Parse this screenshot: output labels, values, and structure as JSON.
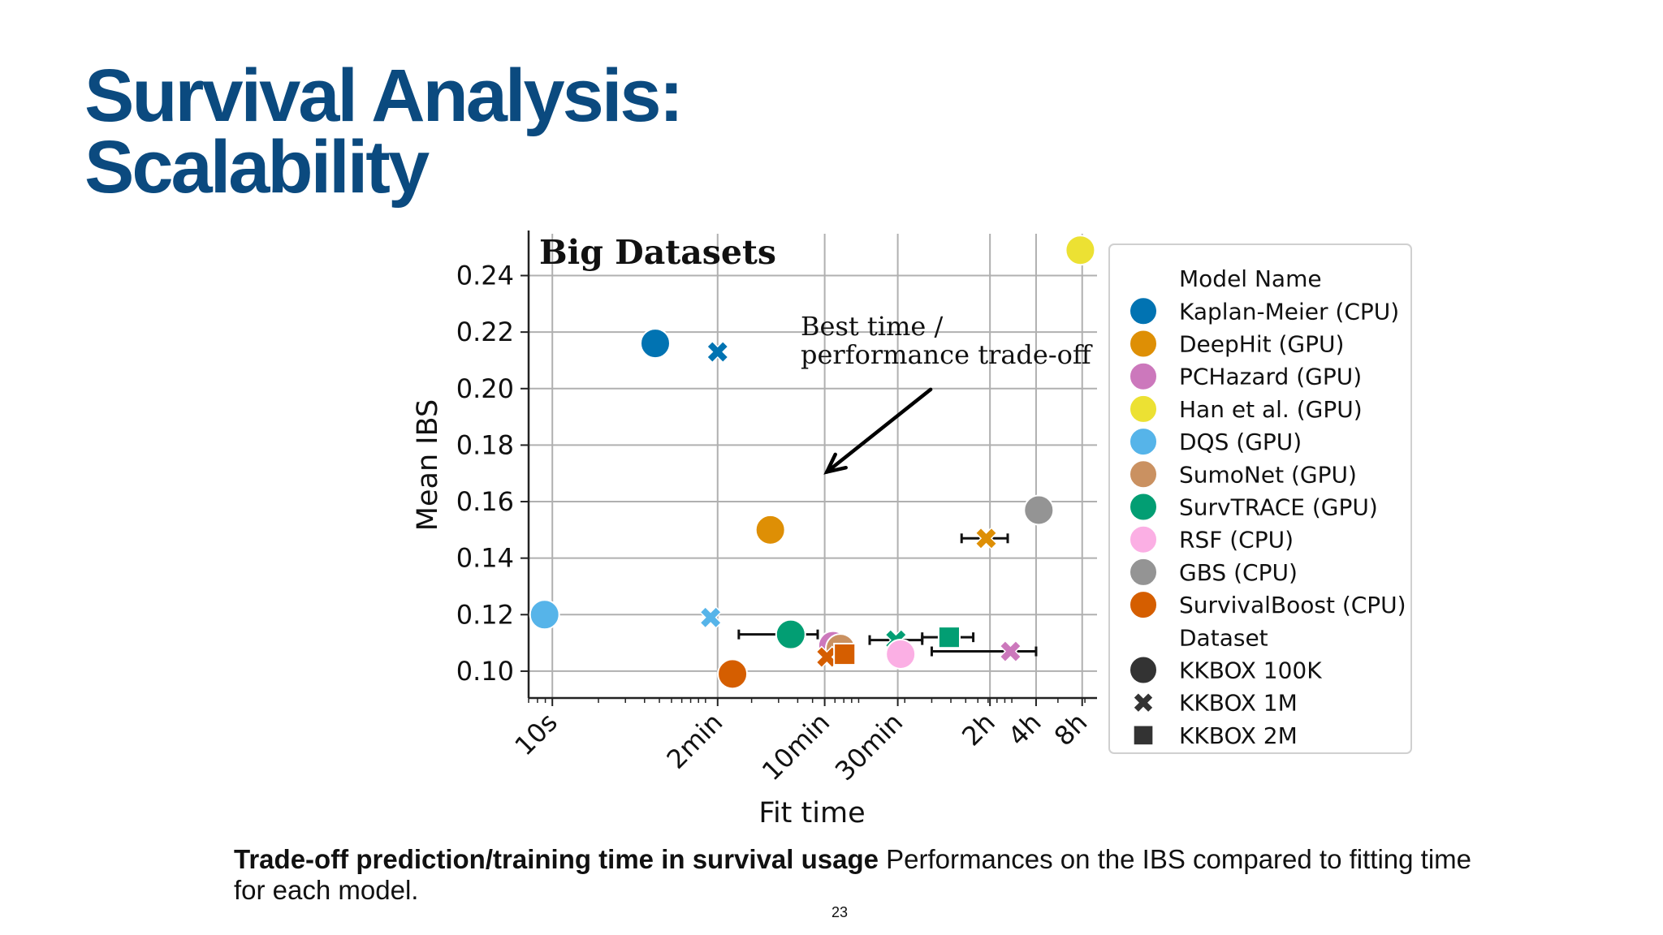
{
  "slide": {
    "title_line1": "Survival Analysis:",
    "title_line2": "Scalability",
    "caption_bold": "Trade-off prediction/training time in survival usage",
    "caption_rest": " Performances on the IBS compared to fitting time for each model.",
    "page_number": "23"
  },
  "chart_data": {
    "type": "scatter",
    "title": "Big Datasets",
    "xlabel": "Fit time",
    "ylabel": "Mean IBS",
    "x_scale": "log",
    "x_unit": "seconds",
    "xlim_seconds": [
      7,
      36000
    ],
    "ylim": [
      0.0905,
      0.2548
    ],
    "x_ticks": [
      {
        "value": 10,
        "label": "10s"
      },
      {
        "value": 120,
        "label": "2min"
      },
      {
        "value": 600,
        "label": "10min"
      },
      {
        "value": 1800,
        "label": "30min"
      },
      {
        "value": 7200,
        "label": "2h"
      },
      {
        "value": 14400,
        "label": "4h"
      },
      {
        "value": 28800,
        "label": "8h"
      }
    ],
    "y_ticks": [
      0.1,
      0.12,
      0.14,
      0.16,
      0.18,
      0.2,
      0.22,
      0.24
    ],
    "y_tick_labels": [
      "0.10",
      "0.12",
      "0.14",
      "0.16",
      "0.18",
      "0.20",
      "0.22",
      "0.24"
    ],
    "grid": true,
    "annotation": {
      "text_line1": "Best time /",
      "text_line2": "performance trade-off",
      "arrow_from": {
        "x": 2950,
        "y": 0.1997
      },
      "arrow_to": {
        "x": 620,
        "y": 0.1705
      }
    },
    "models": [
      {
        "name": "Kaplan-Meier (CPU)",
        "color": "#0173b2"
      },
      {
        "name": "DeepHit (GPU)",
        "color": "#de8f05"
      },
      {
        "name": "PCHazard (GPU)",
        "color": "#cc78bc"
      },
      {
        "name": "Han et al. (GPU)",
        "color": "#ece133"
      },
      {
        "name": "DQS (GPU)",
        "color": "#56b4e9"
      },
      {
        "name": "SumoNet (GPU)",
        "color": "#ca9161"
      },
      {
        "name": "SurvTRACE (GPU)",
        "color": "#029e73"
      },
      {
        "name": "RSF (CPU)",
        "color": "#fbafe4"
      },
      {
        "name": "GBS (CPU)",
        "color": "#949494"
      },
      {
        "name": "SurvivalBoost (CPU)",
        "color": "#d55e00"
      }
    ],
    "datasets": [
      {
        "name": "KKBOX 100K",
        "marker": "circle"
      },
      {
        "name": "KKBOX 1M",
        "marker": "x"
      },
      {
        "name": "KKBOX 2M",
        "marker": "square"
      }
    ],
    "legend": {
      "position": "right, outside",
      "models_title": "Model Name",
      "datasets_title": "Dataset"
    },
    "points": [
      {
        "model": "Kaplan-Meier (CPU)",
        "dataset": "KKBOX 100K",
        "x": 47,
        "y": 0.216
      },
      {
        "model": "Kaplan-Meier (CPU)",
        "dataset": "KKBOX 1M",
        "x": 120,
        "y": 0.213
      },
      {
        "model": "Han et al. (GPU)",
        "dataset": "KKBOX 100K",
        "x": 28000,
        "y": 0.249
      },
      {
        "model": "DeepHit (GPU)",
        "dataset": "KKBOX 100K",
        "x": 265,
        "y": 0.15,
        "xerr": [
          230,
          305
        ]
      },
      {
        "model": "DeepHit (GPU)",
        "dataset": "KKBOX 1M",
        "x": 6800,
        "y": 0.147,
        "xerr": [
          4700,
          9400
        ]
      },
      {
        "model": "GBS (CPU)",
        "dataset": "KKBOX 100K",
        "x": 15000,
        "y": 0.157
      },
      {
        "model": "DQS (GPU)",
        "dataset": "KKBOX 100K",
        "x": 8.9,
        "y": 0.12
      },
      {
        "model": "DQS (GPU)",
        "dataset": "KKBOX 1M",
        "x": 108,
        "y": 0.119
      },
      {
        "model": "SurvTRACE (GPU)",
        "dataset": "KKBOX 100K",
        "x": 360,
        "y": 0.113,
        "xerr": [
          165,
          540
        ]
      },
      {
        "model": "SurvTRACE (GPU)",
        "dataset": "KKBOX 1M",
        "x": 1750,
        "y": 0.111,
        "xerr": [
          1180,
          2600
        ]
      },
      {
        "model": "SurvTRACE (GPU)",
        "dataset": "KKBOX 2M",
        "x": 3900,
        "y": 0.112,
        "xerr": [
          2600,
          5600
        ]
      },
      {
        "model": "PCHazard (GPU)",
        "dataset": "KKBOX 100K",
        "x": 680,
        "y": 0.109
      },
      {
        "model": "SumoNet (GPU)",
        "dataset": "KKBOX 100K",
        "x": 760,
        "y": 0.108
      },
      {
        "model": "PCHazard (GPU)",
        "dataset": "KKBOX 1M",
        "x": 9800,
        "y": 0.107,
        "xerr": [
          3000,
          14400
        ]
      },
      {
        "model": "SurvivalBoost (CPU)",
        "dataset": "KKBOX 1M",
        "x": 620,
        "y": 0.105
      },
      {
        "model": "SurvivalBoost (CPU)",
        "dataset": "KKBOX 2M",
        "x": 810,
        "y": 0.106
      },
      {
        "model": "RSF (CPU)",
        "dataset": "KKBOX 100K",
        "x": 1880,
        "y": 0.106
      },
      {
        "model": "SurvivalBoost (CPU)",
        "dataset": "KKBOX 100K",
        "x": 150,
        "y": 0.099
      }
    ]
  }
}
